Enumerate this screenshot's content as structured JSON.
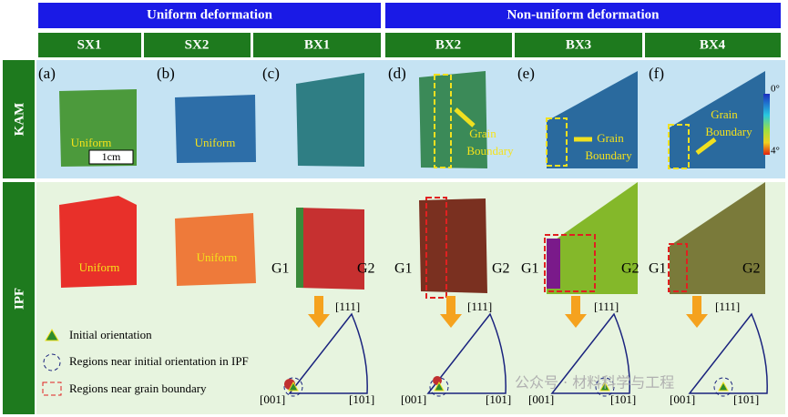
{
  "header": {
    "groups": [
      "Uniform deformation",
      "Non-uniform deformation"
    ],
    "columns": [
      "SX1",
      "SX2",
      "BX1",
      "BX2",
      "BX3",
      "BX4"
    ]
  },
  "rows": [
    "KAM",
    "IPF"
  ],
  "kam": {
    "panels": [
      "(a)",
      "(b)",
      "(c)",
      "(d)",
      "(e)",
      "(f)"
    ],
    "uniform_labels": [
      "Uniform",
      "Uniform"
    ],
    "scale_bar": "1cm",
    "annotations": [
      {
        "lines": [
          "Grain",
          "Boundary"
        ]
      },
      {
        "lines": [
          "Grain",
          "Boundary"
        ]
      },
      {
        "lines": [
          "Grain",
          "Boundary"
        ]
      }
    ],
    "colorbar": {
      "min": "0°",
      "max": "4°"
    }
  },
  "ipf": {
    "uniform_labels": [
      "Uniform",
      "Uniform"
    ],
    "grains": [
      {
        "left": "G1",
        "right": "G2"
      },
      {
        "left": "G1",
        "right": "G2"
      },
      {
        "left": "G1",
        "right": "G2"
      },
      {
        "left": "G1",
        "right": "G2"
      }
    ],
    "pole_figures": [
      {
        "top": "[111]",
        "left": "[001]",
        "right": "[101]"
      },
      {
        "top": "[111]",
        "left": "[001]",
        "right": "[101]"
      },
      {
        "top": "[111]",
        "left": "[001]",
        "right": "[101]"
      },
      {
        "top": "[111]",
        "left": "[001]",
        "right": "[101]"
      }
    ]
  },
  "legend": [
    "Initial orientation",
    "Regions near initial orientation in IPF",
    "Regions near grain boundary"
  ],
  "watermark": "公众号 · 材料科学与工程"
}
